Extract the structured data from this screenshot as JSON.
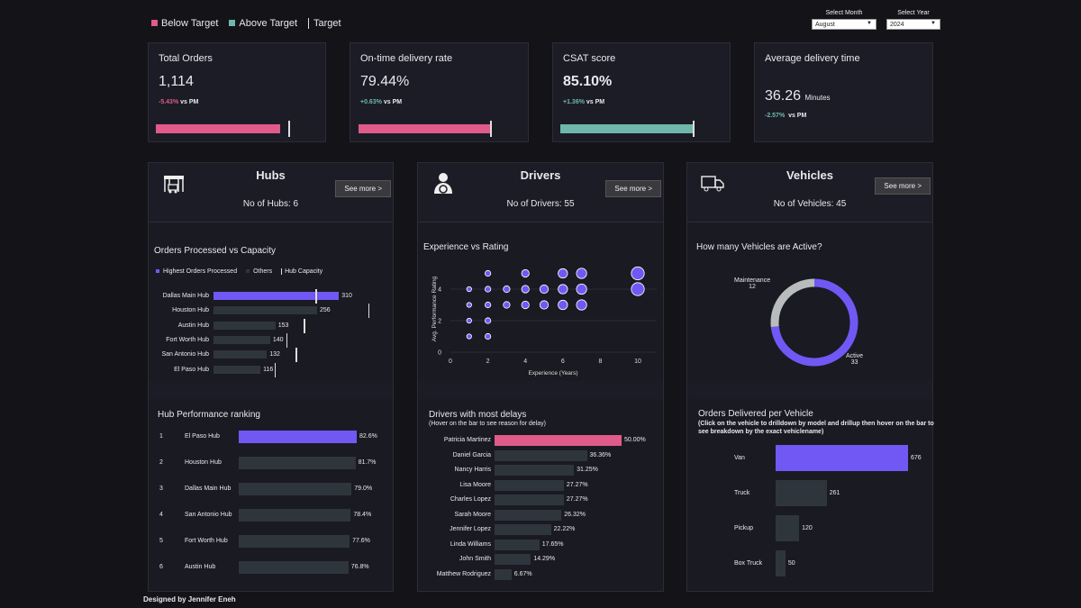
{
  "legend": {
    "below": "Below Target",
    "above": "Above Target",
    "target": "Target"
  },
  "colors": {
    "below": "#e05a8a",
    "above": "#6fb7ab",
    "highlight": "#7158f5",
    "other": "#2f353d",
    "maintenance": "#b9bcbd"
  },
  "filters": {
    "month_label": "Select Month",
    "month": "August",
    "year_label": "Select Year",
    "year": "2024"
  },
  "kpis": [
    {
      "title": "Total Orders",
      "value": "1,114",
      "change": "-5.43%",
      "vs": "vs PM",
      "status": "below",
      "progress": 0.88
    },
    {
      "title": "On-time delivery rate",
      "value": "79.44%",
      "change": "+0.63%",
      "vs": "vs PM",
      "status": "below",
      "progress": 1.0
    },
    {
      "title": "CSAT score",
      "value": "85.10%",
      "change": "+1.36%",
      "vs": "vs PM",
      "status": "above",
      "progress": 1.0
    },
    {
      "title": "Average delivery time",
      "value": "36.26",
      "unit": "Minutes",
      "change": "-2.57%",
      "vs": "vs PM"
    }
  ],
  "hubs": {
    "title": "Hubs",
    "count": "No of Hubs: 6",
    "see_more": "See more >",
    "orders_chart": {
      "title": "Orders Processed  vs Capacity",
      "legend": {
        "highest": "Highest Orders Processed",
        "others": "Others",
        "capacity": "Hub Capacity"
      },
      "rows": [
        {
          "name": "Dallas Main Hub",
          "value": "310",
          "capacity": 252
        },
        {
          "name": "Houston Hub",
          "value": "256",
          "capacity": 383
        },
        {
          "name": "Austin Hub",
          "value": "153",
          "capacity": 223
        },
        {
          "name": "Fort Worth Hub",
          "value": "140",
          "capacity": 180
        },
        {
          "name": "San Antonio Hub",
          "value": "132",
          "capacity": 203
        },
        {
          "name": "El Paso Hub",
          "value": "116",
          "capacity": 151
        }
      ]
    },
    "ranking": {
      "title": "Hub Performance ranking",
      "rows": [
        {
          "rank": "1",
          "name": "El Paso Hub",
          "value": "82.6%"
        },
        {
          "rank": "2",
          "name": "Houston Hub",
          "value": "81.7%"
        },
        {
          "rank": "3",
          "name": "Dallas Main Hub",
          "value": "79.0%"
        },
        {
          "rank": "4",
          "name": "San Antonio Hub",
          "value": "78.4%"
        },
        {
          "rank": "5",
          "name": "Fort Worth Hub",
          "value": "77.6%"
        },
        {
          "rank": "6",
          "name": "Austin Hub",
          "value": "76.8%"
        }
      ]
    }
  },
  "drivers": {
    "title": "Drivers",
    "count": "No of Drivers: 55",
    "see_more": "See more >",
    "scatter": {
      "title": "Experience vs Rating",
      "xlabel": "Experience (Years)",
      "ylabel": "Avg. Performance Rating",
      "xticks": [
        "0",
        "2",
        "4",
        "6",
        "8",
        "10"
      ],
      "yticks": [
        "0",
        "2",
        "4"
      ],
      "points": [
        [
          2,
          5
        ],
        [
          4,
          5
        ],
        [
          6,
          5
        ],
        [
          7,
          5
        ],
        [
          10,
          5
        ],
        [
          1,
          4
        ],
        [
          2,
          4
        ],
        [
          3,
          4
        ],
        [
          4,
          4
        ],
        [
          5,
          4
        ],
        [
          6,
          4
        ],
        [
          7,
          4
        ],
        [
          10,
          4
        ],
        [
          1,
          3
        ],
        [
          2,
          3
        ],
        [
          3,
          3
        ],
        [
          4,
          3
        ],
        [
          5,
          3
        ],
        [
          6,
          3
        ],
        [
          7,
          3
        ],
        [
          1,
          2
        ],
        [
          2,
          2
        ],
        [
          1,
          1
        ],
        [
          2,
          1
        ]
      ]
    },
    "delays": {
      "title": "Drivers with most delays",
      "subtitle": "(Hover on the bar to see reason for delay)",
      "rows": [
        {
          "name": "Patricia Martinez",
          "value": "50.00%"
        },
        {
          "name": "Daniel Garcia",
          "value": "36.36%"
        },
        {
          "name": "Nancy Harris",
          "value": "31.25%"
        },
        {
          "name": "Lisa Moore",
          "value": "27.27%"
        },
        {
          "name": "Charles Lopez",
          "value": "27.27%"
        },
        {
          "name": "Sarah Moore",
          "value": "26.32%"
        },
        {
          "name": "Jennifer Lopez",
          "value": "22.22%"
        },
        {
          "name": "Linda Williams",
          "value": "17.65%"
        },
        {
          "name": "John Smith",
          "value": "14.29%"
        },
        {
          "name": "Matthew Rodriguez",
          "value": "6.67%"
        }
      ]
    }
  },
  "vehicles": {
    "title": "Vehicles",
    "count": "No of Vehicles: 45",
    "see_more": "See more >",
    "donut": {
      "title": "How many Vehicles are Active?",
      "active_label": "Active",
      "active": "33",
      "maint_label": "Maintenance",
      "maint": "12"
    },
    "orders": {
      "title": "Orders Delivered per Vehicle",
      "subtitle": "(Click on the vehicle to drilldown by model and drillup then hover on the bar to see breakdown by the exact vehiclename)",
      "rows": [
        {
          "name": "Van",
          "value": "676"
        },
        {
          "name": "Truck",
          "value": "261"
        },
        {
          "name": "Pickup",
          "value": "120"
        },
        {
          "name": "Box Truck",
          "value": "50"
        }
      ]
    }
  },
  "footer": "Designed by Jennifer Eneh"
}
